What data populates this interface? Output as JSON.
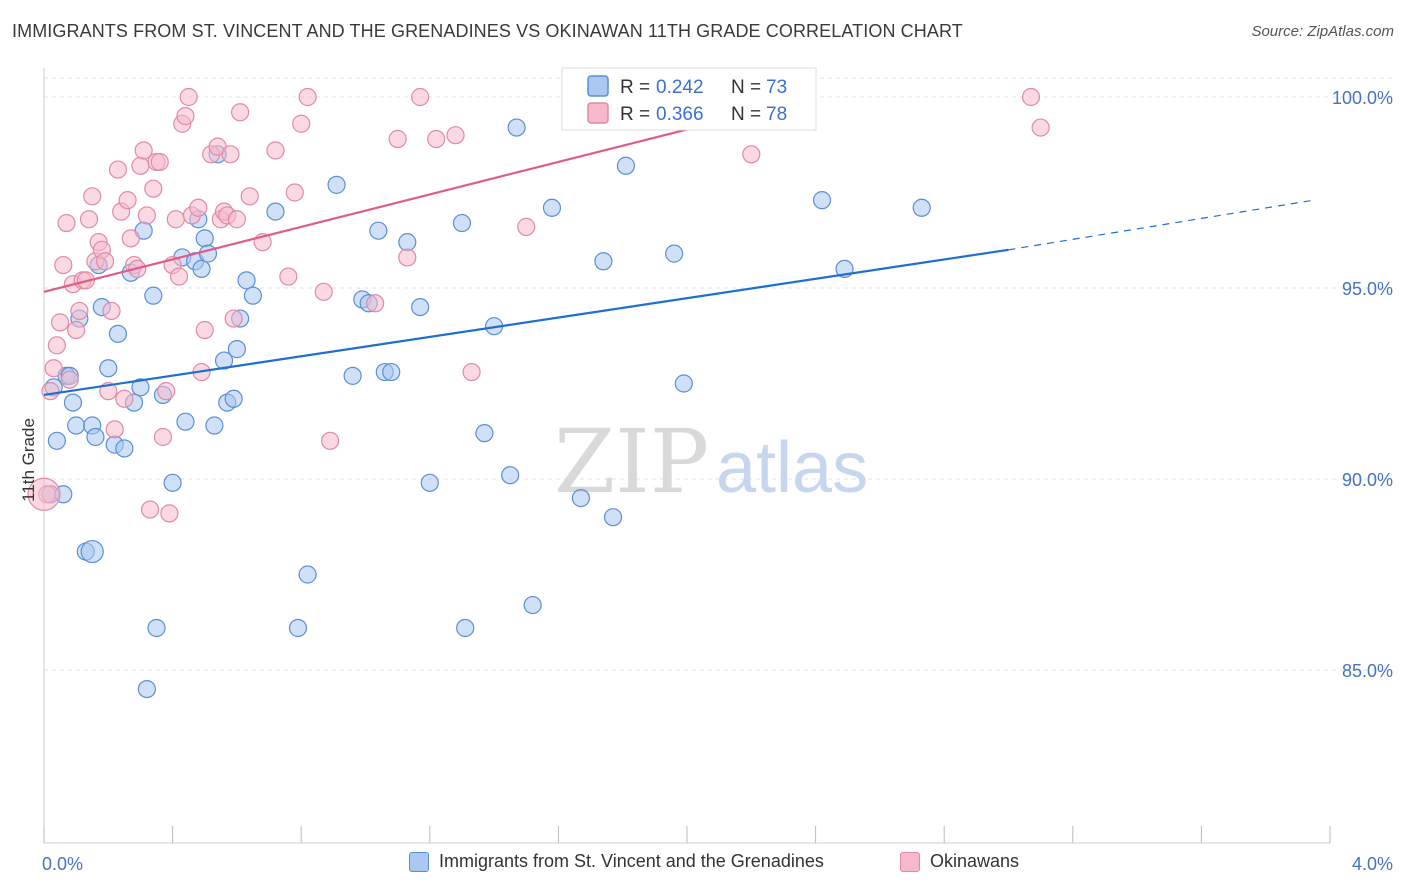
{
  "title": "IMMIGRANTS FROM ST. VINCENT AND THE GRENADINES VS OKINAWAN 11TH GRADE CORRELATION CHART",
  "source": "Source: ZipAtlas.com",
  "watermark": {
    "zip": "ZIP",
    "atlas": "atlas"
  },
  "colors": {
    "blue": "#1f6fd0",
    "blue_fill": "#aac8f0",
    "blue_stroke": "#5a8fd6",
    "pink": "#e05b8a",
    "pink_fill": "#f6b9cc",
    "pink_stroke": "#e08aa8",
    "tick": "#4472c4",
    "grid": "#dddddd"
  },
  "legend_top": {
    "rows": [
      {
        "r_label": "R = ",
        "r_value": "0.242",
        "n_label": "N = ",
        "n_value": "73"
      },
      {
        "r_label": "R = ",
        "r_value": "0.366",
        "n_label": "N = ",
        "n_value": "78"
      }
    ]
  },
  "legend_bottom": {
    "series1": "Immigrants from St. Vincent and the Grenadines",
    "series2": "Okinawans"
  },
  "chart_data": {
    "type": "scatter",
    "title": "IMMIGRANTS FROM ST. VINCENT AND THE GRENADINES VS OKINAWAN 11TH GRADE CORRELATION CHART",
    "xlabel": "",
    "ylabel": "11th Grade",
    "xlim": [
      0.0,
      4.0
    ],
    "ylim": [
      80.5,
      100.5
    ],
    "x_tick_labels": [
      "0.0%",
      "4.0%"
    ],
    "y_ticks": [
      85.0,
      90.0,
      95.0,
      100.0
    ],
    "y_tick_labels": [
      "85.0%",
      "90.0%",
      "95.0%",
      "100.0%"
    ],
    "grid": true,
    "series": [
      {
        "name": "Immigrants from St. Vincent and the Grenadines",
        "color": "#1f6fd0",
        "R": 0.242,
        "N": 73,
        "trend": {
          "x0": 0.0,
          "y0": 92.2,
          "x1": 3.0,
          "y1": 96.0,
          "dash_x1": 3.95,
          "dash_y1": 97.3
        },
        "points": [
          [
            0.02,
            89.6
          ],
          [
            0.03,
            92.4
          ],
          [
            0.04,
            91.0
          ],
          [
            0.06,
            89.6
          ],
          [
            0.07,
            92.7
          ],
          [
            0.08,
            92.7
          ],
          [
            0.09,
            92.0
          ],
          [
            0.1,
            91.4
          ],
          [
            0.11,
            94.2
          ],
          [
            0.13,
            88.1
          ],
          [
            0.15,
            91.4
          ],
          [
            0.16,
            91.1
          ],
          [
            0.17,
            95.6
          ],
          [
            0.18,
            94.5
          ],
          [
            0.2,
            92.9
          ],
          [
            0.22,
            90.9
          ],
          [
            0.23,
            93.8
          ],
          [
            0.25,
            90.8
          ],
          [
            0.27,
            95.4
          ],
          [
            0.28,
            92.0
          ],
          [
            0.3,
            92.4
          ],
          [
            0.31,
            96.5
          ],
          [
            0.32,
            84.5
          ],
          [
            0.34,
            94.8
          ],
          [
            0.35,
            86.1
          ],
          [
            0.37,
            92.2
          ],
          [
            0.4,
            89.9
          ],
          [
            0.43,
            95.8
          ],
          [
            0.44,
            91.5
          ],
          [
            0.47,
            95.7
          ],
          [
            0.48,
            96.8
          ],
          [
            0.49,
            95.5
          ],
          [
            0.5,
            96.3
          ],
          [
            0.51,
            95.9
          ],
          [
            0.53,
            91.4
          ],
          [
            0.54,
            98.5
          ],
          [
            0.56,
            93.1
          ],
          [
            0.57,
            92.0
          ],
          [
            0.59,
            92.1
          ],
          [
            0.6,
            93.4
          ],
          [
            0.61,
            94.2
          ],
          [
            0.63,
            95.2
          ],
          [
            0.65,
            94.8
          ],
          [
            0.72,
            97.0
          ],
          [
            0.79,
            86.1
          ],
          [
            0.82,
            87.5
          ],
          [
            0.91,
            97.7
          ],
          [
            0.96,
            92.7
          ],
          [
            0.99,
            94.7
          ],
          [
            1.01,
            94.6
          ],
          [
            1.04,
            96.5
          ],
          [
            1.06,
            92.8
          ],
          [
            1.08,
            92.8
          ],
          [
            1.13,
            96.2
          ],
          [
            1.17,
            94.5
          ],
          [
            1.2,
            89.9
          ],
          [
            1.3,
            96.7
          ],
          [
            1.31,
            86.1
          ],
          [
            1.37,
            91.2
          ],
          [
            1.4,
            94.0
          ],
          [
            1.45,
            90.1
          ],
          [
            1.47,
            99.2
          ],
          [
            1.52,
            86.7
          ],
          [
            1.58,
            97.1
          ],
          [
            1.67,
            89.5
          ],
          [
            1.74,
            95.7
          ],
          [
            1.77,
            89.0
          ],
          [
            1.81,
            98.2
          ],
          [
            1.96,
            95.9
          ],
          [
            1.99,
            92.5
          ],
          [
            2.42,
            97.3
          ],
          [
            2.49,
            95.5
          ],
          [
            2.73,
            97.1
          ]
        ]
      },
      {
        "name": "Okinawans",
        "color": "#e05b8a",
        "R": 0.366,
        "N": 78,
        "trend": {
          "x0": 0.0,
          "y0": 94.9,
          "x1": 2.4,
          "y1": 100.0
        },
        "points": [
          [
            0.01,
            89.6
          ],
          [
            0.02,
            92.3
          ],
          [
            0.03,
            92.9
          ],
          [
            0.04,
            93.5
          ],
          [
            0.05,
            94.1
          ],
          [
            0.06,
            95.6
          ],
          [
            0.07,
            96.7
          ],
          [
            0.08,
            92.6
          ],
          [
            0.09,
            95.1
          ],
          [
            0.1,
            93.9
          ],
          [
            0.11,
            94.4
          ],
          [
            0.12,
            95.2
          ],
          [
            0.13,
            95.2
          ],
          [
            0.14,
            96.8
          ],
          [
            0.15,
            97.4
          ],
          [
            0.16,
            95.7
          ],
          [
            0.17,
            96.2
          ],
          [
            0.18,
            96.0
          ],
          [
            0.19,
            95.7
          ],
          [
            0.2,
            92.3
          ],
          [
            0.21,
            94.4
          ],
          [
            0.22,
            91.3
          ],
          [
            0.23,
            98.1
          ],
          [
            0.24,
            97.0
          ],
          [
            0.25,
            92.1
          ],
          [
            0.26,
            97.3
          ],
          [
            0.27,
            96.3
          ],
          [
            0.28,
            95.6
          ],
          [
            0.29,
            95.5
          ],
          [
            0.3,
            98.2
          ],
          [
            0.31,
            98.6
          ],
          [
            0.32,
            96.9
          ],
          [
            0.33,
            89.2
          ],
          [
            0.34,
            97.6
          ],
          [
            0.35,
            98.3
          ],
          [
            0.36,
            98.3
          ],
          [
            0.37,
            91.1
          ],
          [
            0.38,
            92.3
          ],
          [
            0.39,
            89.1
          ],
          [
            0.4,
            95.6
          ],
          [
            0.41,
            96.8
          ],
          [
            0.42,
            95.3
          ],
          [
            0.43,
            99.3
          ],
          [
            0.44,
            99.5
          ],
          [
            0.45,
            100.0
          ],
          [
            0.46,
            96.9
          ],
          [
            0.48,
            97.1
          ],
          [
            0.49,
            92.8
          ],
          [
            0.5,
            93.9
          ],
          [
            0.52,
            98.5
          ],
          [
            0.54,
            98.7
          ],
          [
            0.55,
            96.8
          ],
          [
            0.56,
            97.0
          ],
          [
            0.57,
            96.9
          ],
          [
            0.58,
            98.5
          ],
          [
            0.59,
            94.2
          ],
          [
            0.6,
            96.8
          ],
          [
            0.61,
            99.6
          ],
          [
            0.64,
            97.4
          ],
          [
            0.68,
            96.2
          ],
          [
            0.72,
            98.6
          ],
          [
            0.76,
            95.3
          ],
          [
            0.78,
            97.5
          ],
          [
            0.8,
            99.3
          ],
          [
            0.82,
            100.0
          ],
          [
            0.87,
            94.9
          ],
          [
            0.89,
            91.0
          ],
          [
            1.03,
            94.6
          ],
          [
            1.1,
            98.9
          ],
          [
            1.13,
            95.8
          ],
          [
            1.17,
            100.0
          ],
          [
            1.22,
            98.9
          ],
          [
            1.28,
            99.0
          ],
          [
            1.33,
            92.8
          ],
          [
            1.5,
            96.6
          ],
          [
            2.2,
            98.5
          ],
          [
            3.07,
            100.0
          ],
          [
            3.1,
            99.2
          ]
        ]
      }
    ]
  }
}
